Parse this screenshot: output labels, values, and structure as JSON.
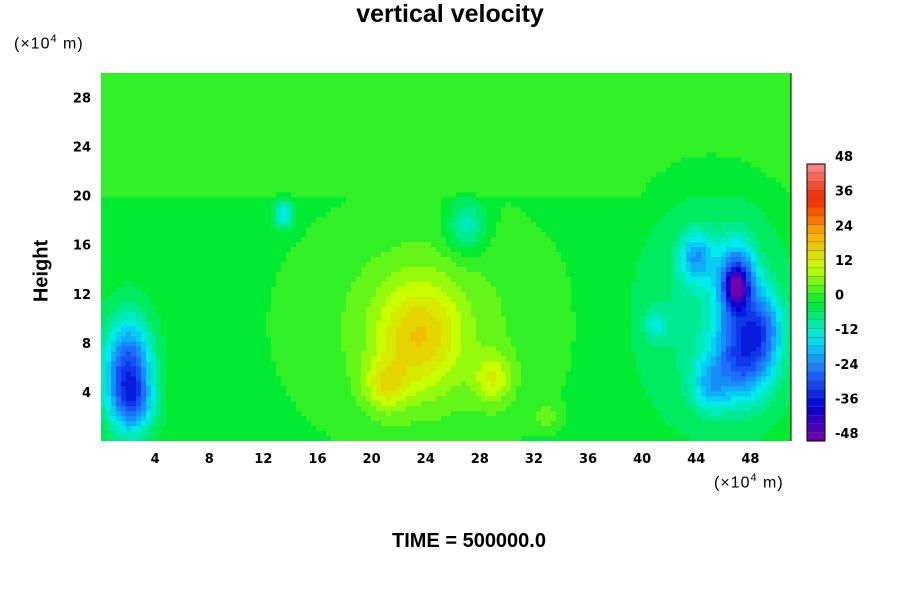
{
  "chart_data": {
    "type": "heatmap",
    "title": "vertical velocity",
    "ylabel": "Height",
    "xunit_prefix": "(×10",
    "xunit_exp": "4",
    "xunit_suffix": " m)",
    "yunit_prefix": "(×10",
    "yunit_exp": "4",
    "yunit_suffix": " m)",
    "footer": "TIME = 500000.0",
    "xlim": [
      0,
      51
    ],
    "ylim": [
      0,
      30
    ],
    "x_ticks": [
      4,
      8,
      12,
      16,
      20,
      24,
      28,
      32,
      36,
      40,
      44,
      48
    ],
    "y_ticks": [
      4,
      8,
      12,
      16,
      20,
      24,
      28
    ],
    "colorbar": {
      "range": [
        -48,
        48
      ],
      "ticks": [
        48,
        36,
        24,
        12,
        0,
        -12,
        -24,
        -36,
        -48
      ],
      "levels": [
        -48,
        -45,
        -42,
        -39,
        -36,
        -33,
        -30,
        -27,
        -24,
        -21,
        -18,
        -15,
        -12,
        -9,
        -6,
        -3,
        0,
        3,
        6,
        9,
        12,
        15,
        18,
        21,
        24,
        27,
        30,
        33,
        36,
        39,
        42,
        45,
        48
      ]
    },
    "background_value": 0,
    "upper_layer_value": 2,
    "features": [
      {
        "x": 2.0,
        "y": 5.5,
        "sx": 1.2,
        "sy": 3.0,
        "value": -30
      },
      {
        "x": 2.5,
        "y": 3.0,
        "sx": 1.0,
        "sy": 1.5,
        "value": -10
      },
      {
        "x": 23.5,
        "y": 8.5,
        "sx": 2.2,
        "sy": 3.2,
        "value": 14
      },
      {
        "x": 21.0,
        "y": 4.5,
        "sx": 1.1,
        "sy": 1.5,
        "value": 10
      },
      {
        "x": 29.0,
        "y": 5.0,
        "sx": 1.0,
        "sy": 1.5,
        "value": 10
      },
      {
        "x": 33.0,
        "y": 2.0,
        "sx": 0.6,
        "sy": 0.7,
        "value": 6
      },
      {
        "x": 24.0,
        "y": 9.5,
        "sx": 7.0,
        "sy": 7.0,
        "value": 6
      },
      {
        "x": 27.0,
        "y": 17.5,
        "sx": 1.0,
        "sy": 1.5,
        "value": -12
      },
      {
        "x": 13.5,
        "y": 18.5,
        "sx": 0.5,
        "sy": 0.8,
        "value": -14
      },
      {
        "x": 47.0,
        "y": 13.0,
        "sx": 1.0,
        "sy": 2.2,
        "value": -26
      },
      {
        "x": 47.0,
        "y": 12.5,
        "sx": 0.5,
        "sy": 1.0,
        "value": -22
      },
      {
        "x": 44.0,
        "y": 15.0,
        "sx": 0.9,
        "sy": 1.5,
        "value": -16
      },
      {
        "x": 47.5,
        "y": 7.0,
        "sx": 1.5,
        "sy": 2.5,
        "value": -25
      },
      {
        "x": 49.0,
        "y": 9.5,
        "sx": 1.0,
        "sy": 2.0,
        "value": -14
      },
      {
        "x": 45.0,
        "y": 4.5,
        "sx": 1.0,
        "sy": 1.5,
        "value": -12
      },
      {
        "x": 41.0,
        "y": 9.5,
        "sx": 0.6,
        "sy": 1.0,
        "value": -8
      },
      {
        "x": 45.0,
        "y": 10.0,
        "sx": 4.0,
        "sy": 6.0,
        "value": -6
      }
    ]
  }
}
